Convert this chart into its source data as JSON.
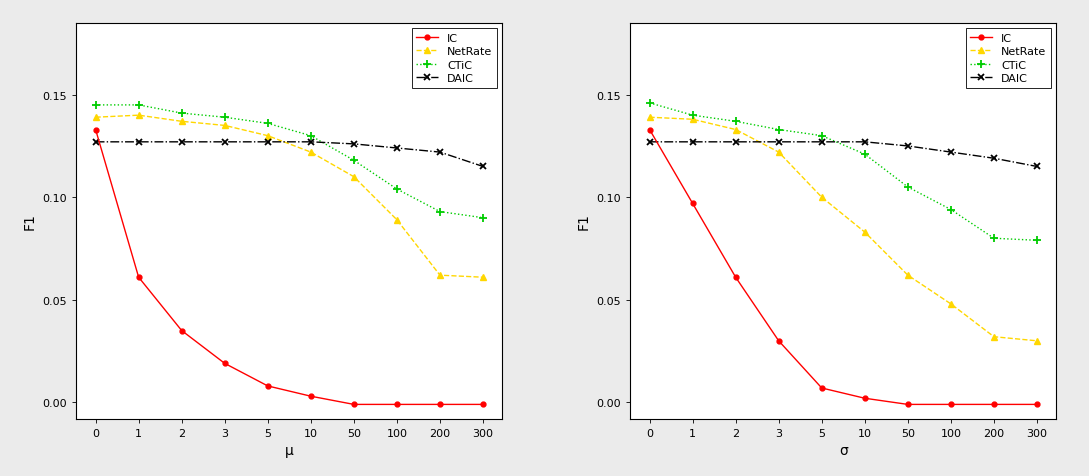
{
  "x_ticks": [
    0,
    1,
    2,
    3,
    5,
    10,
    50,
    100,
    200,
    300
  ],
  "left_plot": {
    "xlabel": "μ",
    "ylabel": "F1",
    "IC": [
      0.133,
      0.061,
      0.035,
      0.019,
      0.008,
      0.003,
      -0.001,
      -0.001,
      -0.001,
      -0.001
    ],
    "NetRate": [
      0.139,
      0.14,
      0.137,
      0.135,
      0.13,
      0.122,
      0.11,
      0.089,
      0.062,
      0.061
    ],
    "CTIC": [
      0.145,
      0.145,
      0.141,
      0.139,
      0.136,
      0.13,
      0.118,
      0.104,
      0.093,
      0.09
    ],
    "DAIC": [
      0.127,
      0.127,
      0.127,
      0.127,
      0.127,
      0.127,
      0.126,
      0.124,
      0.122,
      0.115
    ]
  },
  "right_plot": {
    "xlabel": "σ",
    "ylabel": "F1",
    "IC": [
      0.133,
      0.097,
      0.061,
      0.03,
      0.007,
      0.002,
      -0.001,
      -0.001,
      -0.001,
      -0.001
    ],
    "NetRate": [
      0.139,
      0.138,
      0.133,
      0.122,
      0.1,
      0.083,
      0.062,
      0.048,
      0.032,
      0.03
    ],
    "CTIC": [
      0.146,
      0.14,
      0.137,
      0.133,
      0.13,
      0.121,
      0.105,
      0.094,
      0.08,
      0.079
    ],
    "DAIC": [
      0.127,
      0.127,
      0.127,
      0.127,
      0.127,
      0.127,
      0.125,
      0.122,
      0.119,
      0.115
    ]
  },
  "IC_color": "#FF0000",
  "NetRate_color": "#FFD700",
  "CTIC_color": "#00CC00",
  "DAIC_color": "#000000",
  "ylim": [
    -0.008,
    0.185
  ],
  "yticks": [
    0.0,
    0.05,
    0.1,
    0.15
  ],
  "bg_color": "#EBEBEB",
  "plot_bg": "#FFFFFF",
  "tick_fontsize": 8,
  "label_fontsize": 10,
  "legend_fontsize": 8
}
